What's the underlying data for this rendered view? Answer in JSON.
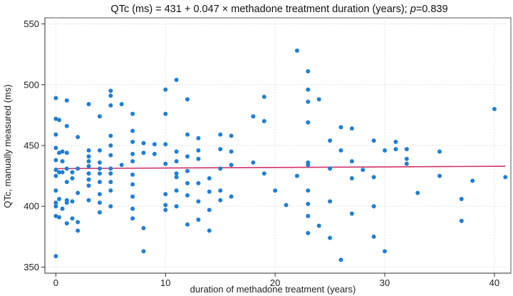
{
  "chart_data": {
    "type": "scatter",
    "title_prefix": "QTc (ms) = 431 + 0.047 × methadone treatment duration (years); ",
    "title_p": "p",
    "title_suffix": "=0.839",
    "xlabel": "duration of methadone treatment (years)",
    "ylabel": "QTc, manually measured (ms)",
    "xlim": [
      -1,
      41.5
    ],
    "ylim": [
      345,
      555
    ],
    "xticks": [
      0,
      10,
      20,
      30,
      40
    ],
    "yticks": [
      350,
      400,
      450,
      500,
      550
    ],
    "grid": true,
    "point_color": "#1f7fd6",
    "line_color": "#d1336b",
    "fit_line": {
      "intercept": 431,
      "slope": 0.047,
      "x_range": [
        0,
        41
      ]
    },
    "points": [
      [
        0,
        359
      ],
      [
        0,
        392
      ],
      [
        0,
        400
      ],
      [
        0,
        403
      ],
      [
        0,
        413
      ],
      [
        0,
        425
      ],
      [
        0,
        430
      ],
      [
        0,
        438
      ],
      [
        0,
        448
      ],
      [
        0,
        459
      ],
      [
        0,
        472
      ],
      [
        0,
        489
      ],
      [
        0.3,
        391
      ],
      [
        0.3,
        406
      ],
      [
        0.3,
        428
      ],
      [
        0.3,
        444
      ],
      [
        0.3,
        471
      ],
      [
        0.6,
        398
      ],
      [
        0.6,
        428
      ],
      [
        0.6,
        437
      ],
      [
        0.6,
        445
      ],
      [
        1,
        386
      ],
      [
        1,
        403
      ],
      [
        1,
        405
      ],
      [
        1,
        420
      ],
      [
        1,
        431
      ],
      [
        1,
        444
      ],
      [
        1,
        466
      ],
      [
        1,
        487
      ],
      [
        1.5,
        390
      ],
      [
        1.5,
        404
      ],
      [
        1.5,
        423
      ],
      [
        1.5,
        428
      ],
      [
        2,
        380
      ],
      [
        2,
        387
      ],
      [
        2,
        411
      ],
      [
        2,
        431
      ],
      [
        2,
        457
      ],
      [
        3,
        405
      ],
      [
        3,
        417
      ],
      [
        3,
        422
      ],
      [
        3,
        427
      ],
      [
        3,
        433
      ],
      [
        3,
        437
      ],
      [
        3,
        441
      ],
      [
        3,
        446
      ],
      [
        3,
        484
      ],
      [
        4,
        395
      ],
      [
        4,
        403
      ],
      [
        4,
        410
      ],
      [
        4,
        420
      ],
      [
        4,
        427
      ],
      [
        4,
        431
      ],
      [
        4,
        436
      ],
      [
        4,
        446
      ],
      [
        4,
        474
      ],
      [
        5,
        400
      ],
      [
        5,
        413
      ],
      [
        5,
        420
      ],
      [
        5,
        427
      ],
      [
        5,
        431
      ],
      [
        5,
        442
      ],
      [
        5,
        450
      ],
      [
        5,
        458
      ],
      [
        5,
        483
      ],
      [
        5,
        491
      ],
      [
        5,
        495
      ],
      [
        6,
        434
      ],
      [
        6,
        484
      ],
      [
        7,
        390
      ],
      [
        7,
        398
      ],
      [
        7,
        408
      ],
      [
        7,
        418
      ],
      [
        7,
        426
      ],
      [
        7,
        437
      ],
      [
        7,
        443
      ],
      [
        7,
        453
      ],
      [
        7,
        462
      ],
      [
        7,
        476
      ],
      [
        8,
        363
      ],
      [
        8,
        382
      ],
      [
        8,
        444
      ],
      [
        8,
        452
      ],
      [
        9,
        443
      ],
      [
        9,
        451
      ],
      [
        10,
        397
      ],
      [
        10,
        401
      ],
      [
        10,
        410
      ],
      [
        10,
        435
      ],
      [
        10,
        451
      ],
      [
        10,
        476
      ],
      [
        10,
        496
      ],
      [
        11,
        400
      ],
      [
        11,
        413
      ],
      [
        11,
        424
      ],
      [
        11,
        427
      ],
      [
        11,
        437
      ],
      [
        11,
        445
      ],
      [
        11,
        504
      ],
      [
        12,
        385
      ],
      [
        12,
        409
      ],
      [
        12,
        419
      ],
      [
        12,
        429
      ],
      [
        12,
        441
      ],
      [
        12,
        459
      ],
      [
        12,
        488
      ],
      [
        13,
        389
      ],
      [
        13,
        404
      ],
      [
        13,
        419
      ],
      [
        13,
        439
      ],
      [
        13,
        446
      ],
      [
        13,
        456
      ],
      [
        14,
        380
      ],
      [
        14,
        397
      ],
      [
        14,
        412
      ],
      [
        14,
        423
      ],
      [
        15,
        405
      ],
      [
        15,
        413
      ],
      [
        15,
        431
      ],
      [
        15,
        447
      ],
      [
        15,
        459
      ],
      [
        16,
        408
      ],
      [
        16,
        434
      ],
      [
        16,
        445
      ],
      [
        16,
        458
      ],
      [
        18,
        436
      ],
      [
        18,
        474
      ],
      [
        19,
        427
      ],
      [
        19,
        470
      ],
      [
        19,
        490
      ],
      [
        20,
        413
      ],
      [
        21,
        401
      ],
      [
        22,
        425
      ],
      [
        22,
        528
      ],
      [
        23,
        378
      ],
      [
        23,
        392
      ],
      [
        23,
        402
      ],
      [
        23,
        413
      ],
      [
        23,
        434
      ],
      [
        23,
        436
      ],
      [
        23,
        469
      ],
      [
        23,
        486
      ],
      [
        23,
        496
      ],
      [
        23,
        511
      ],
      [
        24,
        384
      ],
      [
        24,
        488
      ],
      [
        25,
        374
      ],
      [
        25,
        404
      ],
      [
        25,
        431
      ],
      [
        25,
        454
      ],
      [
        26,
        356
      ],
      [
        26,
        446
      ],
      [
        26,
        465
      ],
      [
        27,
        394
      ],
      [
        27,
        423
      ],
      [
        27,
        437
      ],
      [
        27,
        464
      ],
      [
        28,
        430
      ],
      [
        29,
        375
      ],
      [
        29,
        400
      ],
      [
        29,
        424
      ],
      [
        29,
        454
      ],
      [
        30,
        363
      ],
      [
        30,
        446
      ],
      [
        31,
        447
      ],
      [
        31,
        453
      ],
      [
        32,
        435
      ],
      [
        32,
        439
      ],
      [
        32,
        447
      ],
      [
        33,
        411
      ],
      [
        35,
        425
      ],
      [
        35,
        445
      ],
      [
        37,
        388
      ],
      [
        37,
        406
      ],
      [
        38,
        421
      ],
      [
        40,
        480
      ],
      [
        41,
        424
      ]
    ]
  }
}
